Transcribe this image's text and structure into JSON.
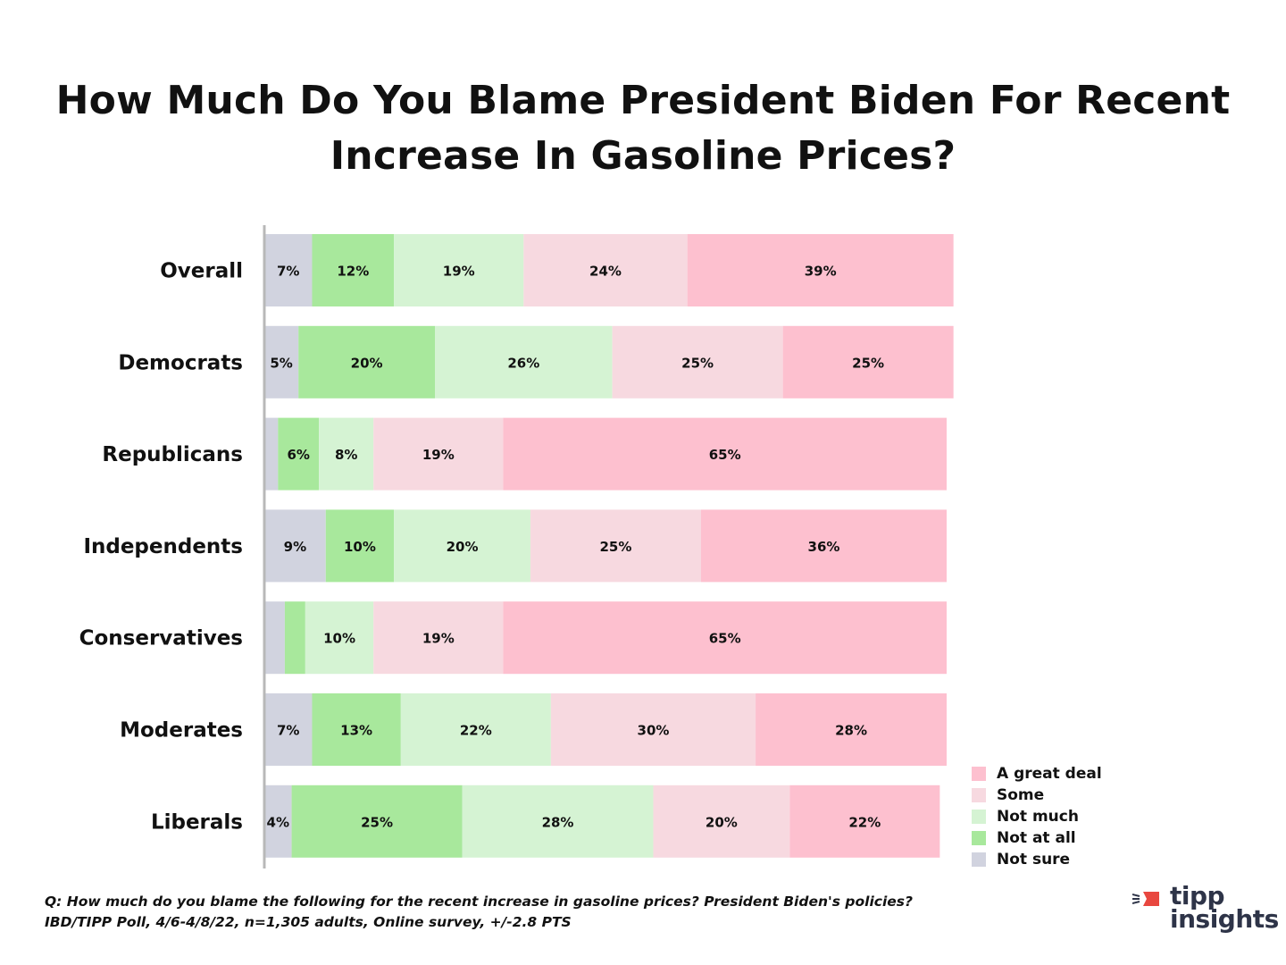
{
  "chart_data": {
    "type": "bar",
    "orientation": "horizontal",
    "stacked": true,
    "title": "How Much Do You Blame President Biden For Recent Increase In Gasoline Prices?",
    "title_lines": [
      "How Much Do You Blame President Biden For Recent",
      "Increase In Gasoline Prices?"
    ],
    "xlabel": "",
    "ylabel": "",
    "xlim": [
      0,
      100
    ],
    "grid": false,
    "legend_position": "bottom-right",
    "categories": [
      "Overall",
      "Democrats",
      "Republicans",
      "Independents",
      "Conservatives",
      "Moderates",
      "Liberals"
    ],
    "series": [
      {
        "name": "Not sure",
        "color": "#d1d3df",
        "values": [
          7,
          5,
          2,
          9,
          3,
          7,
          4
        ],
        "labels": [
          "7%",
          "5%",
          "",
          "9%",
          "",
          "7%",
          "4%"
        ]
      },
      {
        "name": "Not at all",
        "color": "#a8e89c",
        "values": [
          12,
          20,
          6,
          10,
          3,
          13,
          25
        ],
        "labels": [
          "12%",
          "20%",
          "6%",
          "10%",
          "",
          "13%",
          "25%"
        ]
      },
      {
        "name": "Not much",
        "color": "#d5f3d3",
        "values": [
          19,
          26,
          8,
          20,
          10,
          22,
          28
        ],
        "labels": [
          "19%",
          "26%",
          "8%",
          "20%",
          "10%",
          "22%",
          "28%"
        ]
      },
      {
        "name": "Some",
        "color": "#f7d9e0",
        "values": [
          24,
          25,
          19,
          25,
          19,
          30,
          20
        ],
        "labels": [
          "24%",
          "25%",
          "19%",
          "25%",
          "19%",
          "30%",
          "20%"
        ]
      },
      {
        "name": "A great deal",
        "color": "#fdc0cf",
        "values": [
          39,
          25,
          65,
          36,
          65,
          28,
          22
        ],
        "labels": [
          "39%",
          "25%",
          "65%",
          "36%",
          "65%",
          "28%",
          "22%"
        ]
      }
    ],
    "legend_order": [
      "A great deal",
      "Some",
      "Not much",
      "Not at all",
      "Not sure"
    ]
  },
  "footer": {
    "question": "Q: How much do you blame the following for the recent increase in gasoline prices? President Biden's policies?",
    "source": "IBD/TIPP Poll, 4/6-4/8/22, n=1,305 adults, Online survey, +/-2.8 PTS"
  },
  "logo": {
    "line1": "tipp",
    "line2": "insights",
    "icon": "megaphone-icon",
    "accent_color": "#e8473f",
    "text_color": "#2e3448"
  }
}
